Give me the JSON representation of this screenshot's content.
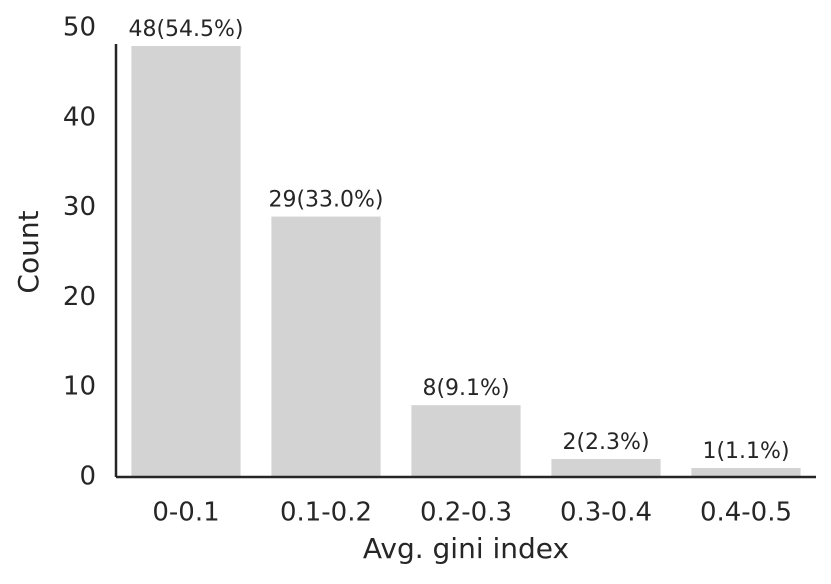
{
  "chart_data": {
    "type": "bar",
    "x_label": "Avg. gini index",
    "y_label": "Count",
    "categories": [
      "0-0.1",
      "0.1-0.2",
      "0.2-0.3",
      "0.3-0.4",
      "0.4-0.5"
    ],
    "values": [
      48,
      29,
      8,
      2,
      1
    ],
    "value_labels": [
      "48(54.5%)",
      "29(33.0%)",
      "8(9.1%)",
      "2(2.3%)",
      "1(1.1%)"
    ],
    "color": "#d3d3d3",
    "ylim": [
      0,
      50
    ],
    "yticks": [
      0,
      10,
      20,
      30,
      40,
      50
    ],
    "grid": false
  }
}
